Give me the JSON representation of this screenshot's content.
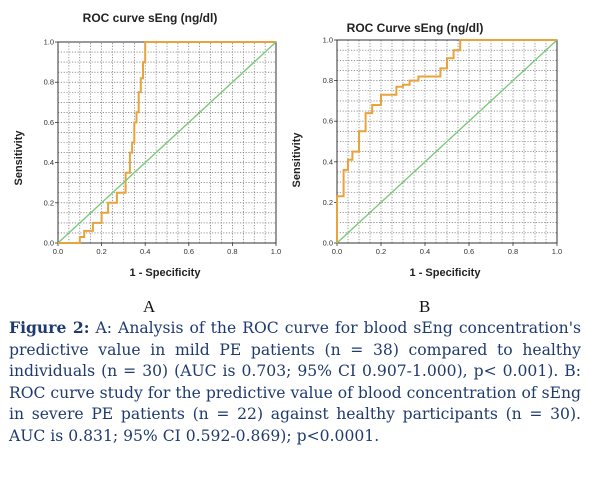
{
  "chart_data": [
    {
      "type": "line",
      "title": "ROC curve sEng (ng/dl)",
      "xlabel": "1 - Specificity",
      "ylabel": "Sensitivity",
      "xlim": [
        0,
        1
      ],
      "ylim": [
        0,
        1
      ],
      "ticks": [
        "0.0",
        "0.2",
        "0.4",
        "0.6",
        "0.8",
        "1.0"
      ],
      "grid": true,
      "series": [
        {
          "color": "#e8a33d",
          "x": [
            0.0,
            0.1,
            0.1,
            0.12,
            0.12,
            0.16,
            0.16,
            0.2,
            0.2,
            0.23,
            0.23,
            0.27,
            0.27,
            0.31,
            0.31,
            0.33,
            0.33,
            0.34,
            0.34,
            0.35,
            0.35,
            0.36,
            0.36,
            0.37,
            0.37,
            0.38,
            0.38,
            0.39,
            0.39,
            0.4,
            0.4,
            1.0
          ],
          "y": [
            0.0,
            0.0,
            0.03,
            0.03,
            0.06,
            0.06,
            0.1,
            0.1,
            0.15,
            0.15,
            0.2,
            0.2,
            0.25,
            0.25,
            0.35,
            0.35,
            0.45,
            0.45,
            0.5,
            0.5,
            0.6,
            0.6,
            0.65,
            0.65,
            0.75,
            0.75,
            0.82,
            0.82,
            0.9,
            0.9,
            1.0,
            1.0
          ]
        },
        {
          "color": "#7ec87e",
          "x": [
            0,
            1
          ],
          "y": [
            0,
            1
          ]
        }
      ]
    },
    {
      "type": "line",
      "title": "ROC Curve sEng (ng/dl)",
      "xlabel": "1 - Specificity",
      "ylabel": "Sensitivity",
      "xlim": [
        0,
        1
      ],
      "ylim": [
        0,
        1
      ],
      "ticks": [
        "0.0",
        "0.2",
        "0.4",
        "0.6",
        "0.8",
        "1.0"
      ],
      "grid": true,
      "series": [
        {
          "color": "#e8a33d",
          "x": [
            0.0,
            0.0,
            0.03,
            0.03,
            0.05,
            0.05,
            0.07,
            0.07,
            0.1,
            0.1,
            0.13,
            0.13,
            0.16,
            0.16,
            0.2,
            0.2,
            0.27,
            0.27,
            0.3,
            0.3,
            0.33,
            0.33,
            0.37,
            0.37,
            0.47,
            0.47,
            0.5,
            0.5,
            0.53,
            0.53,
            0.56,
            0.56,
            1.0
          ],
          "y": [
            0.0,
            0.23,
            0.23,
            0.36,
            0.36,
            0.41,
            0.41,
            0.45,
            0.45,
            0.55,
            0.55,
            0.64,
            0.64,
            0.68,
            0.68,
            0.73,
            0.73,
            0.77,
            0.77,
            0.78,
            0.78,
            0.8,
            0.8,
            0.82,
            0.82,
            0.86,
            0.86,
            0.91,
            0.91,
            0.95,
            0.95,
            1.0,
            1.0
          ]
        },
        {
          "color": "#7ec87e",
          "x": [
            0,
            1
          ],
          "y": [
            0,
            1
          ]
        }
      ]
    }
  ],
  "panel_labels": [
    "A",
    "B"
  ],
  "caption": {
    "label": "Figure 2:",
    "text": " A: Analysis of the ROC curve for blood sEng concentration's predictive value in mild PE patients (n = 38) compared to healthy individuals (n = 30) (AUC is 0.703; 95% CI 0.907-1.000), p< 0.001). B: ROC curve study for the predictive value of blood concentration of sEng in severe PE patients (n = 22) against healthy participants (n = 30). AUC is 0.831; 95% CI 0.592-0.869); p<0.0001."
  }
}
